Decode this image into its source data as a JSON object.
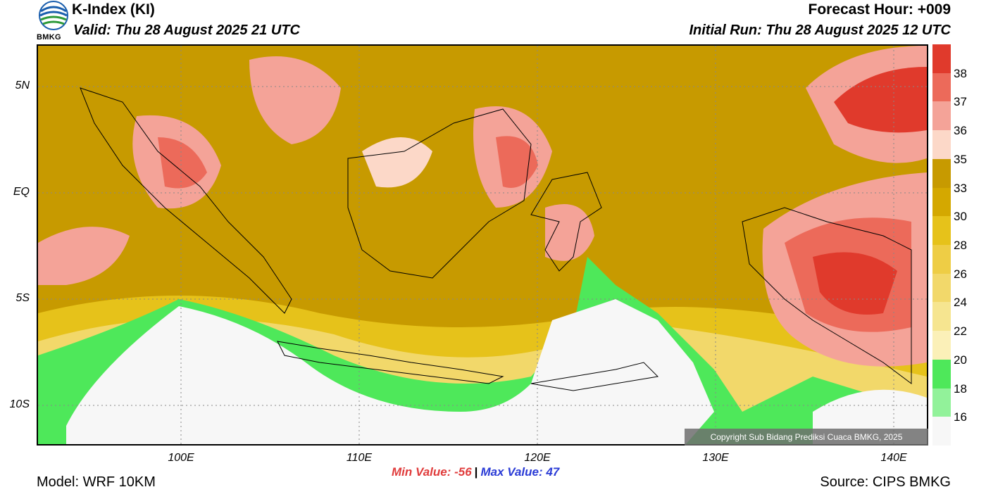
{
  "header": {
    "title": "K-Index (KI)",
    "valid": "Valid: Thu 28 August 2025 21 UTC",
    "forecast_hour": "Forecast Hour: +009",
    "initial_run": "Initial Run: Thu 28 August 2025 12 UTC",
    "logo_text": "BMKG"
  },
  "map": {
    "lat_labels": [
      "5N",
      "EQ",
      "5S",
      "10S"
    ],
    "lon_labels": [
      "100E",
      "110E",
      "120E",
      "130E",
      "140E"
    ],
    "copyright": "Copyright Sub Bidang Prediksi Cuaca BMKG, 2025"
  },
  "colorbar": {
    "labels": [
      "38",
      "37",
      "36",
      "35",
      "33",
      "30",
      "28",
      "26",
      "24",
      "22",
      "20",
      "18",
      "16"
    ],
    "colors": [
      "#e03a2c",
      "#ec6a5a",
      "#f4a398",
      "#fcd8c8",
      "#c79a00",
      "#d4a800",
      "#e6c21a",
      "#eecd45",
      "#f2d86a",
      "#f6e590",
      "#fbf0b8",
      "#4ee85a",
      "#92f29a",
      "#f7f7f7"
    ]
  },
  "stats": {
    "min_label": "Min Value: -56",
    "max_label": "Max Value:  47"
  },
  "footer": {
    "model": "Model: WRF 10KM",
    "source": "Source: CIPS BMKG"
  }
}
